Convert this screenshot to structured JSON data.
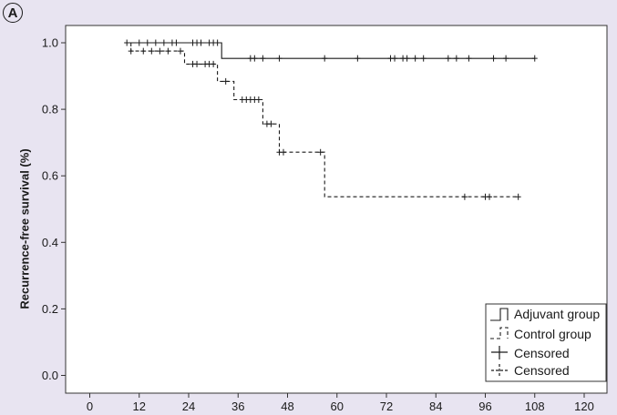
{
  "panel_label": "A",
  "chart_data": {
    "type": "line",
    "plot_style": "kaplan-meier step curves",
    "xlabel": "",
    "ylabel": "Recurrence-free survival (%)",
    "xlim": [
      -12,
      126
    ],
    "ylim": [
      0,
      1.05
    ],
    "xticks": [
      "0",
      "12",
      "24",
      "36",
      "48",
      "60",
      "72",
      "84",
      "96",
      "108",
      "120"
    ],
    "yticks": [
      "0.0",
      "0.2",
      "0.4",
      "0.6",
      "0.8",
      "1.0"
    ],
    "grid": false,
    "legend_position": "bottom-right",
    "legend": {
      "adjuvant": "Adjuvant group",
      "control": "Control group",
      "censored_adjuvant": "Censored",
      "censored_control": "Censored"
    },
    "series": [
      {
        "name": "Adjuvant group",
        "line_style": "solid",
        "color": "#1a1a1a",
        "steps": [
          [
            9,
            1.0
          ],
          [
            32,
            1.0
          ],
          [
            32,
            0.953
          ],
          [
            108,
            0.953
          ]
        ],
        "censored": [
          [
            9,
            1.0
          ],
          [
            12,
            1.0
          ],
          [
            14,
            1.0
          ],
          [
            16,
            1.0
          ],
          [
            18,
            1.0
          ],
          [
            20,
            1.0
          ],
          [
            21,
            1.0
          ],
          [
            25,
            1.0
          ],
          [
            26,
            1.0
          ],
          [
            27,
            1.0
          ],
          [
            29,
            1.0
          ],
          [
            30,
            1.0
          ],
          [
            31,
            1.0
          ],
          [
            39,
            0.953
          ],
          [
            40,
            0.953
          ],
          [
            42,
            0.953
          ],
          [
            46,
            0.953
          ],
          [
            57,
            0.953
          ],
          [
            65,
            0.953
          ],
          [
            73,
            0.953
          ],
          [
            74,
            0.953
          ],
          [
            76,
            0.953
          ],
          [
            77,
            0.953
          ],
          [
            79,
            0.953
          ],
          [
            81,
            0.953
          ],
          [
            87,
            0.953
          ],
          [
            89,
            0.953
          ],
          [
            92,
            0.953
          ],
          [
            98,
            0.953
          ],
          [
            101,
            0.953
          ],
          [
            108,
            0.953
          ]
        ]
      },
      {
        "name": "Control group",
        "line_style": "dashed",
        "color": "#1a1a1a",
        "steps": [
          [
            10,
            1.0
          ],
          [
            10,
            0.975
          ],
          [
            23,
            0.975
          ],
          [
            23,
            0.936
          ],
          [
            31,
            0.936
          ],
          [
            31,
            0.884
          ],
          [
            35,
            0.884
          ],
          [
            35,
            0.829
          ],
          [
            42,
            0.829
          ],
          [
            42,
            0.756
          ],
          [
            46,
            0.756
          ],
          [
            46,
            0.671
          ],
          [
            57,
            0.671
          ],
          [
            57,
            0.537
          ],
          [
            104,
            0.537
          ]
        ],
        "censored": [
          [
            10,
            0.975
          ],
          [
            13,
            0.975
          ],
          [
            15,
            0.975
          ],
          [
            17,
            0.975
          ],
          [
            19,
            0.975
          ],
          [
            22,
            0.975
          ],
          [
            25,
            0.936
          ],
          [
            26,
            0.936
          ],
          [
            28,
            0.936
          ],
          [
            29,
            0.936
          ],
          [
            30,
            0.936
          ],
          [
            33,
            0.884
          ],
          [
            37,
            0.829
          ],
          [
            38,
            0.829
          ],
          [
            39,
            0.829
          ],
          [
            40,
            0.829
          ],
          [
            41,
            0.829
          ],
          [
            43,
            0.756
          ],
          [
            44,
            0.756
          ],
          [
            46,
            0.671
          ],
          [
            47,
            0.671
          ],
          [
            56,
            0.671
          ],
          [
            91,
            0.537
          ],
          [
            96,
            0.537
          ],
          [
            97,
            0.537
          ],
          [
            104,
            0.537
          ]
        ]
      }
    ]
  }
}
